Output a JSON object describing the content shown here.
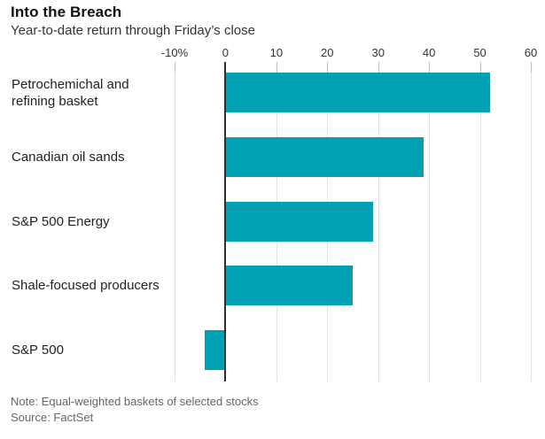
{
  "header": {
    "title": "Into the Breach",
    "subtitle": "Year-to-date return through Friday’s close"
  },
  "footer": {
    "note": "Note: Equal-weighted baskets of selected stocks",
    "source": "Source: FactSet"
  },
  "colors": {
    "bar": "#00a0b5",
    "zero_line": "#2f2f2f",
    "gridline": "#e4e4e4",
    "tick_mark": "#bfbfbf",
    "axis_text": "#333333",
    "category_text": "#222222",
    "footer_text": "#666666"
  },
  "chart_data": {
    "type": "bar",
    "orientation": "horizontal",
    "title": "Into the Breach",
    "subtitle": "Year-to-date return through Friday’s close",
    "categories": [
      "Petrochemichal and refining basket",
      "Canadian oil sands",
      "S&P 500 Energy",
      "Shale-focused producers",
      "S&P 500"
    ],
    "values": [
      52,
      39,
      29,
      25,
      -4
    ],
    "unit": "percent",
    "xlim": [
      -10,
      60
    ],
    "xticks": [
      -10,
      0,
      10,
      20,
      30,
      40,
      50,
      60
    ],
    "xtick_labels": [
      "-10%",
      "0",
      "10",
      "20",
      "30",
      "40",
      "50",
      "60"
    ],
    "grid": true,
    "legend": "none",
    "note": "Note: Equal-weighted baskets of selected stocks",
    "source": "Source: FactSet"
  }
}
